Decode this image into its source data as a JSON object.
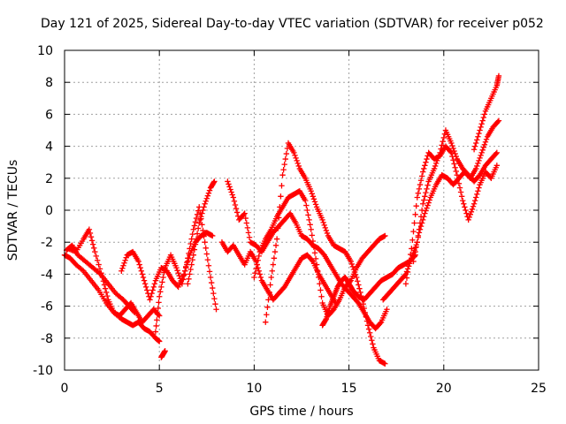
{
  "chart_data": {
    "type": "scatter",
    "title": "Day 121 of 2025, Sidereal Day-to-day VTEC variation (SDTVAR) for receiver p052",
    "xlabel": "GPS time / hours",
    "ylabel": "SDTVAR / TECUs",
    "xlim": [
      0,
      25
    ],
    "ylim": [
      -10,
      10
    ],
    "x_ticks": [
      "0",
      "5",
      "10",
      "15",
      "20",
      "25"
    ],
    "y_ticks": [
      "10",
      "8",
      "6",
      "4",
      "2",
      "0",
      "-2",
      "-4",
      "-6",
      "-8",
      "-10"
    ],
    "grid": true,
    "legend": "none",
    "marker": "+",
    "color": "#ff0000",
    "series": [
      {
        "x": [
          0.0,
          0.3,
          0.6,
          1.0,
          1.4,
          1.8,
          2.2,
          2.6,
          3.0,
          3.3,
          3.6,
          3.9,
          4.2,
          4.5,
          4.8,
          5.0
        ],
        "y": [
          -2.8,
          -3.0,
          -3.4,
          -3.8,
          -4.4,
          -5.0,
          -5.8,
          -6.4,
          -6.8,
          -7.0,
          -7.2,
          -7.0,
          -7.4,
          -7.6,
          -8.0,
          -8.2
        ]
      },
      {
        "x": [
          0.1,
          0.4,
          0.7,
          1.1,
          1.5,
          1.9,
          2.3,
          2.7,
          3.1,
          3.4,
          3.7
        ],
        "y": [
          -2.5,
          -2.2,
          -2.8,
          -3.2,
          -3.6,
          -4.0,
          -4.6,
          -5.2,
          -5.6,
          -6.0,
          -6.4
        ]
      },
      {
        "x": [
          0.2,
          0.6,
          1.0,
          1.3,
          1.6,
          2.0,
          2.3,
          2.6,
          2.9,
          3.2,
          3.5,
          3.8,
          4.1,
          4.4,
          4.7,
          5.0
        ],
        "y": [
          -2.4,
          -2.6,
          -1.8,
          -1.2,
          -2.6,
          -4.2,
          -5.6,
          -6.4,
          -6.6,
          -6.2,
          -5.8,
          -6.4,
          -7.0,
          -6.6,
          -6.2,
          -6.6
        ]
      },
      {
        "x": [
          3.0,
          3.3,
          3.6,
          3.9,
          4.2,
          4.5,
          4.8,
          5.1,
          5.4,
          5.7,
          6.0,
          6.3,
          6.6,
          6.9,
          7.2,
          7.5,
          7.8
        ],
        "y": [
          -3.8,
          -2.8,
          -2.6,
          -3.2,
          -4.4,
          -5.6,
          -4.4,
          -3.6,
          -3.8,
          -4.4,
          -4.8,
          -4.0,
          -2.8,
          -2.0,
          -1.6,
          -1.4,
          -1.6
        ]
      },
      {
        "x": [
          4.8,
          5.0,
          5.3,
          5.6,
          5.9,
          6.2,
          6.5,
          6.8,
          7.1,
          7.4,
          7.7,
          8.0
        ],
        "y": [
          -7.6,
          -5.4,
          -3.6,
          -2.8,
          -3.6,
          -4.6,
          -3.0,
          -1.2,
          0.2,
          -2.0,
          -4.2,
          -6.2
        ]
      },
      {
        "x": [
          5.1,
          5.2,
          5.3
        ],
        "y": [
          -9.2,
          -9.0,
          -8.8
        ]
      },
      {
        "x": [
          6.5,
          6.8,
          7.1,
          7.4,
          7.7,
          7.9
        ],
        "y": [
          -4.6,
          -2.8,
          -0.8,
          0.4,
          1.4,
          1.8
        ]
      },
      {
        "x": [
          8.3,
          8.6,
          8.9,
          9.2,
          9.5,
          9.8,
          10.1,
          10.4,
          10.7,
          11.0,
          11.3,
          11.6,
          11.9,
          12.2,
          12.5,
          12.8,
          13.1,
          13.4,
          13.7,
          14.0,
          14.3
        ],
        "y": [
          -2.0,
          -2.6,
          -2.2,
          -2.8,
          -3.4,
          -2.6,
          -3.2,
          -4.4,
          -5.0,
          -5.6,
          -5.2,
          -4.8,
          -4.2,
          -3.6,
          -3.0,
          -2.8,
          -3.2,
          -4.0,
          -4.6,
          -5.2,
          -5.8
        ]
      },
      {
        "x": [
          8.6,
          8.9,
          9.2,
          9.5,
          9.8,
          10.1,
          10.4,
          10.7,
          11.0,
          11.3,
          11.6,
          11.9,
          12.2,
          12.5,
          12.8,
          13.1,
          13.4,
          13.7,
          14.0,
          14.3,
          14.6,
          14.9,
          15.2,
          15.5,
          15.8,
          16.1,
          16.4,
          16.7,
          17.0
        ],
        "y": [
          1.8,
          0.8,
          -0.6,
          -0.2,
          -2.0,
          -2.2,
          -2.6,
          -2.0,
          -1.4,
          -1.0,
          -0.6,
          -0.2,
          -0.8,
          -1.6,
          -1.8,
          -2.2,
          -2.4,
          -2.8,
          -3.4,
          -4.0,
          -4.6,
          -5.0,
          -5.4,
          -5.8,
          -6.4,
          -7.0,
          -7.4,
          -7.0,
          -6.2
        ]
      },
      {
        "x": [
          10.6,
          10.9,
          11.2,
          11.5,
          11.8,
          12.1,
          12.4,
          12.7,
          13.0,
          13.3,
          13.6,
          13.9,
          14.2,
          14.5,
          14.8,
          15.1,
          15.4,
          15.7,
          16.0,
          16.3,
          16.6,
          16.9
        ],
        "y": [
          -7.0,
          -4.2,
          -1.8,
          2.2,
          4.2,
          3.6,
          2.6,
          2.0,
          1.2,
          0.2,
          -0.6,
          -1.6,
          -2.2,
          -2.4,
          -2.6,
          -3.2,
          -4.2,
          -5.6,
          -7.2,
          -8.6,
          -9.4,
          -9.6
        ]
      },
      {
        "x": [
          10.0,
          10.3,
          10.6,
          10.9,
          11.2,
          11.5,
          11.8,
          12.1,
          12.4,
          12.7,
          13.0,
          13.3,
          13.6,
          13.9,
          14.2,
          14.5,
          14.8,
          15.1,
          15.4,
          15.7,
          16.0,
          16.3,
          16.6,
          16.9
        ],
        "y": [
          -4.2,
          -2.6,
          -1.8,
          -1.2,
          -0.4,
          0.2,
          0.8,
          1.0,
          1.2,
          0.6,
          -1.2,
          -3.4,
          -5.8,
          -6.6,
          -6.2,
          -5.6,
          -4.8,
          -4.4,
          -3.6,
          -3.0,
          -2.6,
          -2.2,
          -1.8,
          -1.6
        ]
      },
      {
        "x": [
          13.6,
          13.8,
          14.0,
          14.2,
          14.4,
          14.6,
          14.8,
          15.0,
          15.2,
          15.5,
          15.8,
          16.1,
          16.4,
          16.7,
          17.0,
          17.3,
          17.6,
          17.9,
          18.2,
          18.5
        ],
        "y": [
          -7.2,
          -6.8,
          -6.0,
          -5.4,
          -4.8,
          -4.4,
          -4.2,
          -4.6,
          -5.0,
          -5.4,
          -5.6,
          -5.2,
          -4.8,
          -4.4,
          -4.2,
          -4.0,
          -3.6,
          -3.4,
          -3.2,
          -2.8
        ]
      },
      {
        "x": [
          16.8,
          17.1,
          17.4,
          17.7,
          18.0,
          18.3,
          18.6,
          18.9,
          19.2,
          19.5,
          19.8,
          20.1,
          20.4,
          20.7,
          21.0,
          21.3,
          21.6,
          21.9,
          22.2,
          22.5,
          22.8
        ],
        "y": [
          -5.6,
          -5.2,
          -4.8,
          -4.4,
          -4.0,
          -3.0,
          -2.0,
          0.4,
          1.8,
          2.6,
          3.6,
          5.0,
          4.2,
          3.2,
          2.6,
          2.2,
          1.8,
          2.2,
          2.8,
          3.2,
          3.6
        ]
      },
      {
        "x": [
          18.0,
          18.3,
          18.6,
          18.9,
          19.2,
          19.5,
          19.8,
          20.1,
          20.4,
          20.7,
          21.0,
          21.3,
          21.6,
          21.9,
          22.2,
          22.5,
          22.8
        ],
        "y": [
          -4.6,
          -2.4,
          0.8,
          2.4,
          3.6,
          3.2,
          3.4,
          4.0,
          3.6,
          2.2,
          0.6,
          -0.6,
          0.4,
          1.6,
          2.4,
          2.0,
          2.8
        ]
      },
      {
        "x": [
          18.4,
          18.7,
          19.0,
          19.3,
          19.6,
          19.9,
          20.2,
          20.5,
          20.8,
          21.1,
          21.4,
          21.7,
          22.0,
          22.3,
          22.6,
          22.9
        ],
        "y": [
          -3.2,
          -1.4,
          -0.2,
          0.8,
          1.6,
          2.2,
          2.0,
          1.6,
          2.0,
          2.4,
          2.0,
          2.6,
          3.6,
          4.6,
          5.2,
          5.6
        ]
      },
      {
        "x": [
          21.6,
          21.9,
          22.2,
          22.5,
          22.8,
          22.9
        ],
        "y": [
          3.8,
          5.0,
          6.2,
          7.0,
          7.8,
          8.4
        ]
      }
    ]
  }
}
